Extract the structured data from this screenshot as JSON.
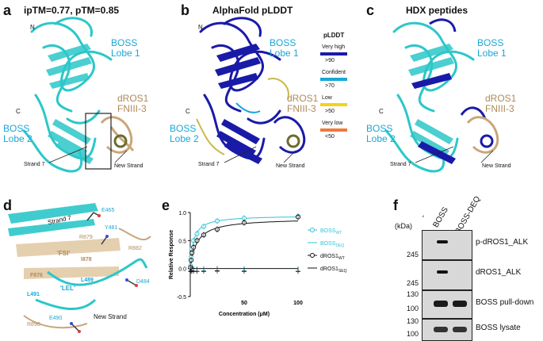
{
  "panels": {
    "a": {
      "letter": "a",
      "title": "ipTM=0.77, pTM=0.85",
      "n_term": "N",
      "c_term": "C",
      "boss_lobe1": [
        "BOSS",
        "Lobe 1"
      ],
      "boss_lobe2": [
        "BOSS",
        "Lobe 2"
      ],
      "dros1": [
        "dROS1",
        "FNIII-3"
      ],
      "strand7": "Strand 7",
      "new_strand": "New Strand"
    },
    "b": {
      "letter": "b",
      "title": "AlphaFold pLDDT",
      "n_term": "N",
      "c_term": "C",
      "boss_lobe1": [
        "BOSS",
        "Lobe 1"
      ],
      "boss_lobe2": [
        "BOSS",
        "Lobe 2"
      ],
      "dros1": [
        "dROS1",
        "FNIII-3"
      ],
      "strand7": "Strand 7",
      "new_strand": "New Strand",
      "legend": {
        "title": "pLDDT",
        "items": [
          {
            "label": "Very high",
            "threshold": ">90",
            "color": "#1a1aa8"
          },
          {
            "label": "Confident",
            "threshold": ">70",
            "color": "#1aa7d6"
          },
          {
            "label": "Low",
            "threshold": ">50",
            "color": "#f2d21a"
          },
          {
            "label": "Very low",
            "threshold": "<50",
            "color": "#f07a3a"
          }
        ]
      }
    },
    "c": {
      "letter": "c",
      "title": "HDX peptides",
      "c_term": "C",
      "boss_lobe1": [
        "BOSS",
        "Lobe 1"
      ],
      "boss_lobe2": [
        "BOSS",
        "Lobe 2"
      ],
      "dros1": [
        "dROS1",
        "FNIII-3"
      ],
      "strand7": "Strand 7",
      "new_strand": "New Strand"
    },
    "d": {
      "letter": "d",
      "labels": {
        "e465": "E465",
        "strand7": "Strand 7",
        "y481": "Y481",
        "r879": "R879",
        "r882": "R882",
        "fsi": "'FSI'",
        "i878": "I878",
        "f876": "F876",
        "l489": "L489",
        "d484": "D484",
        "lel": "'LEL'",
        "l491": "L491",
        "e490": "E490",
        "r890": "R890",
        "new_strand": "New Strand"
      }
    },
    "e": {
      "letter": "e"
    },
    "f": {
      "letter": "f",
      "lanes": [
        "-",
        "BOSS",
        "BOSS-DEQ"
      ],
      "kda_label": "(kDa)",
      "blots": [
        {
          "label": "p-dROS1_ALK",
          "markers": [
            "245"
          ]
        },
        {
          "label": "dROS1_ALK",
          "markers": [
            "245"
          ]
        },
        {
          "label": "BOSS pull-down",
          "markers": [
            "130",
            "100"
          ]
        },
        {
          "label": "BOSS lysate",
          "markers": [
            "130",
            "100"
          ]
        }
      ]
    }
  },
  "chart_data": {
    "type": "scatter",
    "xlabel": "Concentration (μM)",
    "ylabel": "Relative Response",
    "xlim": [
      0,
      100
    ],
    "ylim": [
      -0.5,
      1.0
    ],
    "x_ticks": [
      "50",
      "100"
    ],
    "y_ticks": [
      "1.0",
      "0.5",
      "0.0",
      "-0.5"
    ],
    "series": [
      {
        "name": "BOSS",
        "subscript": "WT",
        "color": "#2fc4d8",
        "marker": "circle-open",
        "x": [
          0.4,
          0.8,
          1.6,
          3.1,
          6.25,
          12.5,
          25,
          50,
          100
        ],
        "y": [
          0.05,
          0.2,
          0.35,
          0.5,
          0.62,
          0.75,
          0.85,
          0.9,
          0.93
        ]
      },
      {
        "name": "BOSS",
        "subscript": "DEQ",
        "color": "#2fc4d8",
        "marker": "dash",
        "x": [
          0.4,
          0.8,
          1.6,
          3.1,
          6.25,
          12.5,
          25,
          50,
          100
        ],
        "y": [
          -0.05,
          -0.04,
          -0.04,
          -0.05,
          -0.05,
          -0.04,
          -0.05,
          -0.04,
          -0.05
        ]
      },
      {
        "name": "dROS1",
        "subscript": "WT",
        "color": "#111111",
        "marker": "circle-open",
        "x": [
          0.4,
          0.8,
          1.6,
          3.1,
          6.25,
          12.5,
          25,
          50,
          100
        ],
        "y": [
          0.02,
          0.15,
          0.28,
          0.38,
          0.5,
          0.6,
          0.7,
          0.82,
          0.92
        ]
      },
      {
        "name": "dROS1",
        "subscript": "SEQ",
        "color": "#111111",
        "marker": "dash",
        "x": [
          0.4,
          0.8,
          1.6,
          3.1,
          6.25,
          12.5,
          25,
          50,
          100
        ],
        "y": [
          -0.05,
          -0.05,
          -0.04,
          -0.05,
          -0.05,
          -0.05,
          -0.04,
          -0.05,
          -0.05
        ]
      }
    ]
  }
}
